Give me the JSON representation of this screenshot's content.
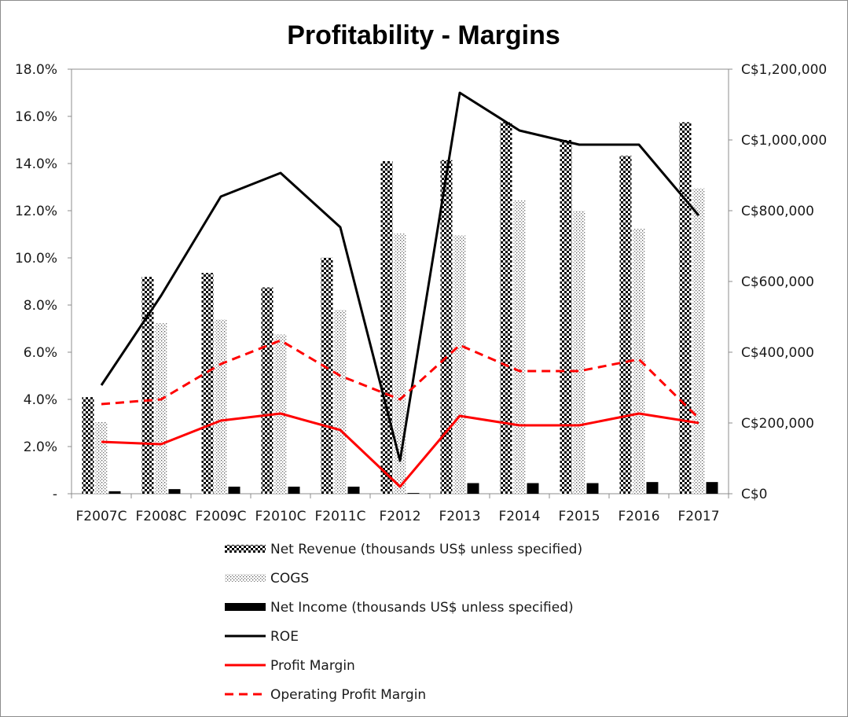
{
  "chart_data": {
    "type": "bar",
    "title": "Profitability - Margins",
    "categories": [
      "F2007C",
      "F2008C",
      "F2009C",
      "F2010C",
      "F2011C",
      "F2012",
      "F2013",
      "F2014",
      "F2015",
      "F2016",
      "F2017"
    ],
    "y_left": {
      "min": 0,
      "max": 0.18,
      "step": 0.02,
      "tick_labels": [
        "-",
        "2.0%",
        "4.0%",
        "6.0%",
        "8.0%",
        "10.0%",
        "12.0%",
        "14.0%",
        "16.0%",
        "18.0%"
      ]
    },
    "y_right": {
      "min": 0,
      "max": 1200000,
      "step": 200000,
      "tick_labels": [
        "C$0",
        "C$200,000",
        "C$400,000",
        "C$600,000",
        "C$800,000",
        "C$1,000,000",
        "C$1,200,000"
      ]
    },
    "series": [
      {
        "name": "Net Revenue (thousands US$ unless specified)",
        "kind": "bar",
        "axis": "right",
        "pattern": "checker",
        "values": [
          273000,
          613000,
          624000,
          583000,
          667000,
          940000,
          943000,
          1050000,
          1000000,
          955000,
          1050000
        ]
      },
      {
        "name": "COGS",
        "kind": "bar",
        "axis": "right",
        "pattern": "dots",
        "values": [
          203000,
          483000,
          493000,
          450000,
          520000,
          735000,
          730000,
          830000,
          800000,
          750000,
          863000
        ]
      },
      {
        "name": "Net Income (thousands US$ unless specified)",
        "kind": "bar",
        "axis": "right",
        "pattern": "solid",
        "values": [
          7000,
          13000,
          20000,
          20000,
          20000,
          2000,
          30000,
          30000,
          30000,
          33000,
          33000
        ]
      },
      {
        "name": "ROE",
        "kind": "line",
        "axis": "left",
        "color": "#000000",
        "dash": "solid",
        "values": [
          0.046,
          0.084,
          0.126,
          0.136,
          0.113,
          0.014,
          0.17,
          0.154,
          0.148,
          0.148,
          0.118
        ]
      },
      {
        "name": "Profit Margin",
        "kind": "line",
        "axis": "left",
        "color": "#ff0000",
        "dash": "solid",
        "values": [
          0.022,
          0.021,
          0.031,
          0.034,
          0.027,
          0.003,
          0.033,
          0.029,
          0.029,
          0.034,
          0.03
        ]
      },
      {
        "name": "Operating Profit Margin",
        "kind": "line",
        "axis": "left",
        "color": "#ff0000",
        "dash": "dashed",
        "values": [
          0.038,
          0.04,
          0.055,
          0.065,
          0.05,
          0.04,
          0.063,
          0.052,
          0.052,
          0.057,
          0.032
        ]
      }
    ],
    "grid": false,
    "legend_position": "bottom"
  }
}
